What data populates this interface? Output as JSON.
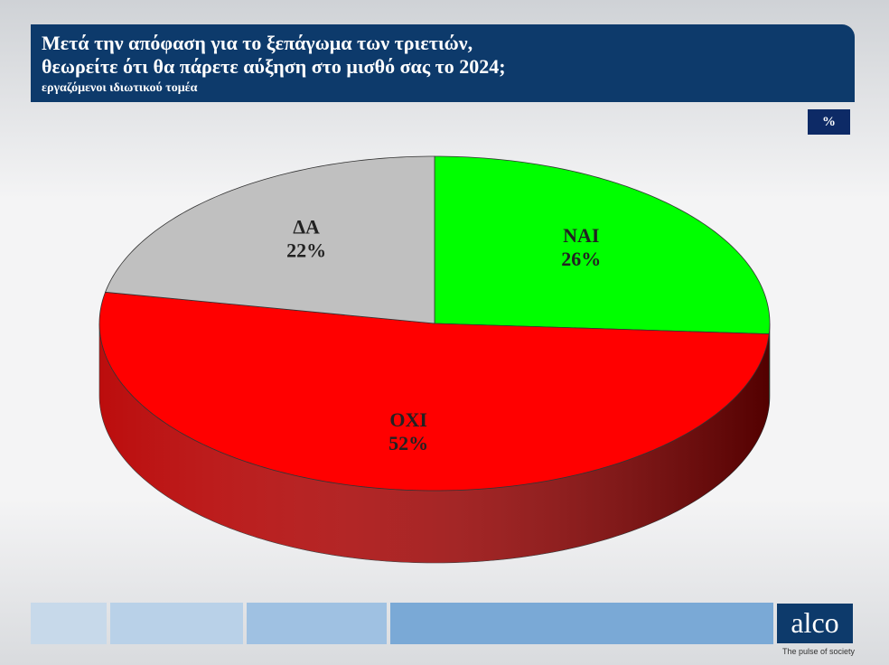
{
  "chart_data": {
    "type": "pie",
    "title": "Μετά την απόφαση για το ξεπάγωμα των τριετιών,\nθεωρείτε ότι θα πάρετε αύξηση στο μισθό σας το 2024;",
    "subtitle": "εργαζόμενοι ιδιωτικού τομέα",
    "unit": "%",
    "categories": [
      "ΝΑΙ",
      "ΟΧΙ",
      "ΔΑ"
    ],
    "values": [
      26,
      52,
      22
    ],
    "value_labels": [
      "26%",
      "52%",
      "22%"
    ],
    "colors": [
      "#00ff00",
      "#ff0000",
      "#c0c0c0"
    ]
  },
  "footer": {
    "logo": "alco",
    "tagline": "The pulse of society"
  }
}
